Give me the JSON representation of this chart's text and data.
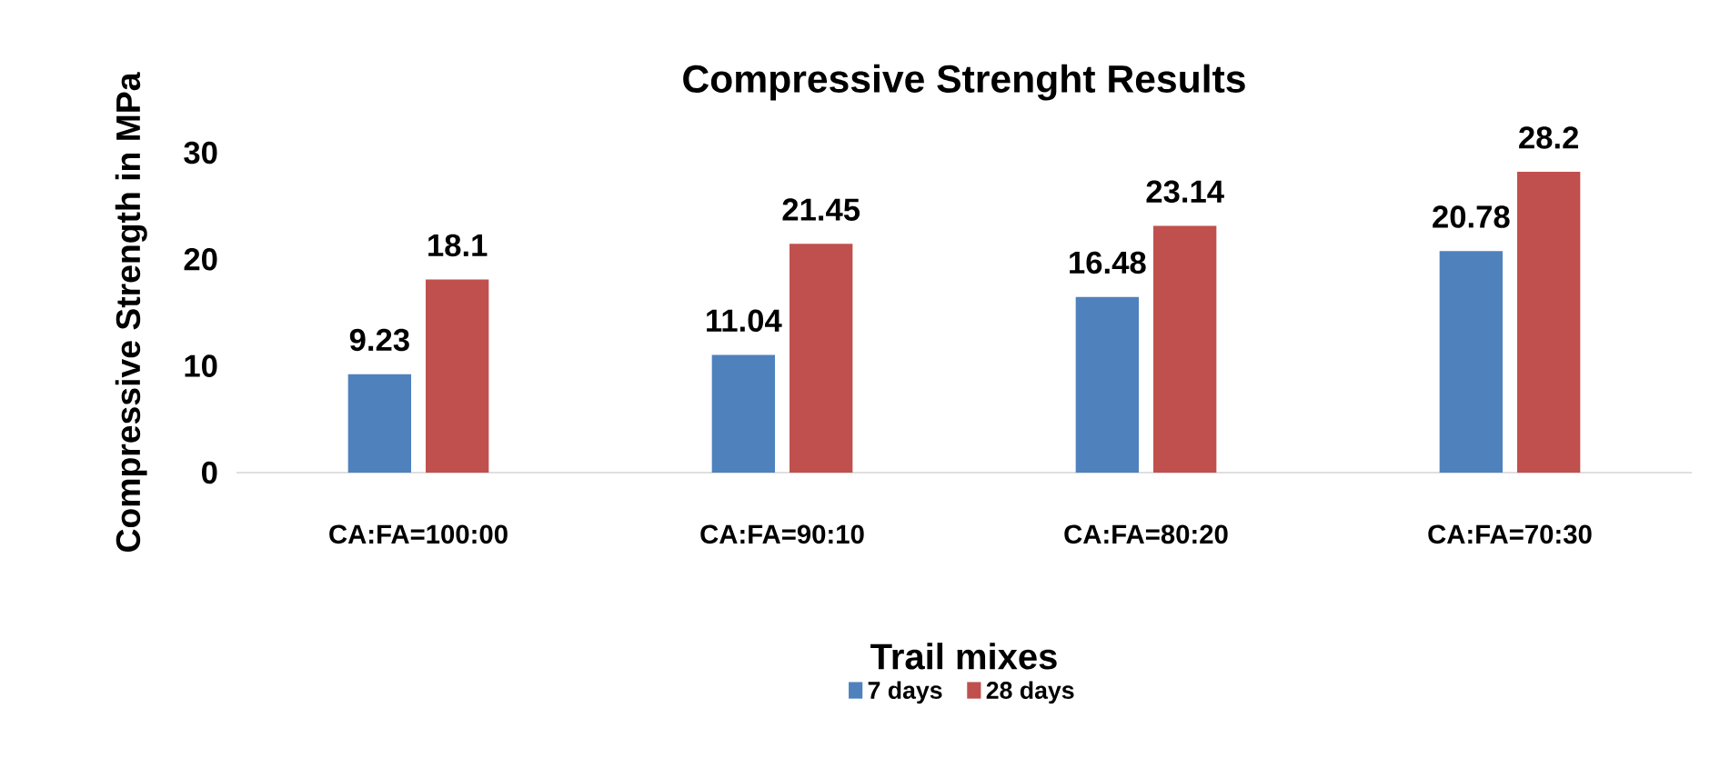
{
  "chart_data": {
    "type": "bar",
    "title": "Compressive Strenght Results",
    "xlabel": "Trail mixes",
    "ylabel": "Compressive Strength in MPa",
    "categories": [
      "CA:FA=100:00",
      "CA:FA=90:10",
      "CA:FA=80:20",
      "CA:FA=70:30"
    ],
    "series": [
      {
        "name": "7 days",
        "color": "#4f81bd",
        "values": [
          9.23,
          11.04,
          16.48,
          20.78
        ]
      },
      {
        "name": "28 days",
        "color": "#c0504d",
        "values": [
          18.1,
          21.45,
          23.14,
          28.2
        ]
      }
    ],
    "ylim": [
      0,
      30
    ],
    "yticks": [
      0,
      10,
      20,
      30
    ],
    "data_labels": true,
    "legend": "bottom"
  }
}
